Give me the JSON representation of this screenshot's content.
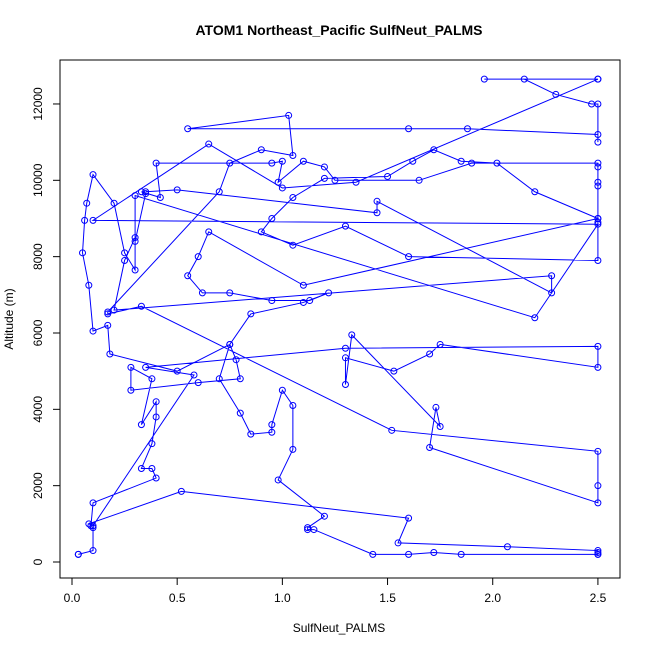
{
  "chart_data": {
    "type": "line",
    "title": "ATOM1 Northeast_Pacific SulfNeut_PALMS",
    "x_label": "SulfNeut_PALMS",
    "y_label": "Altitude (m)",
    "x": [
      0.03,
      0.03,
      0.1,
      0.1,
      0.09,
      0.1,
      0.4,
      0.38,
      0.33,
      0.38,
      0.4,
      0.4,
      0.33,
      0.38,
      0.28,
      0.28,
      0.6,
      0.8,
      0.78,
      0.75,
      0.5,
      0.18,
      0.17,
      0.1,
      0.08,
      0.05,
      0.06,
      0.07,
      0.1,
      0.2,
      0.25,
      0.3,
      0.3,
      0.35,
      0.33,
      0.42,
      0.4,
      0.95,
      1.0,
      0.98,
      1.1,
      1.2,
      1.25,
      1.65,
      1.9,
      2.5,
      2.5,
      2.5,
      2.5,
      2.5,
      2.5,
      2.5,
      1.6,
      1.3,
      1.05,
      0.9,
      0.95,
      1.05,
      1.2,
      1.5,
      1.62,
      1.72,
      1.85,
      2.02,
      2.2,
      2.5,
      1.1,
      0.65,
      0.6,
      0.55,
      0.62,
      0.75,
      0.95,
      1.13,
      1.22,
      1.1,
      0.85,
      0.75,
      0.7,
      0.8,
      0.85,
      0.95,
      0.95,
      1.0,
      1.05,
      1.05,
      0.98,
      1.2,
      1.12,
      1.12,
      1.15,
      1.43,
      1.6,
      1.72,
      1.85,
      2.5,
      2.5,
      2.5,
      2.5,
      2.07,
      1.55,
      1.6,
      0.52,
      0.08,
      0.1,
      0.58,
      0.35,
      1.3,
      2.5,
      2.5,
      1.75,
      1.7,
      1.53,
      1.3,
      1.3,
      1.33,
      1.75,
      1.73,
      1.7,
      2.5,
      2.5,
      2.5,
      1.52,
      0.33,
      0.17,
      0.17,
      0.7,
      0.75,
      0.9,
      1.05,
      1.03,
      0.55,
      1.6,
      1.88,
      2.5,
      2.5,
      2.5,
      2.47,
      2.3,
      2.15,
      1.96,
      2.5,
      2.5,
      1.35,
      1.0,
      0.65,
      0.1,
      2.5,
      2.2,
      0.3,
      0.3,
      0.25,
      0.2,
      2.28,
      2.28,
      1.45,
      1.45,
      0.5,
      0.35
    ],
    "series": [
      {
        "color": "#0000ff",
        "values": [
          200,
          200,
          300,
          900,
          950,
          1550,
          2200,
          2450,
          2450,
          3100,
          3800,
          4200,
          3600,
          4800,
          5100,
          4500,
          4700,
          4800,
          5300,
          5700,
          5000,
          5450,
          6200,
          6050,
          7250,
          8100,
          8950,
          9400,
          10150,
          9400,
          8100,
          7650,
          8400,
          9650,
          9700,
          9550,
          10450,
          10450,
          10500,
          9950,
          10500,
          10350,
          10000,
          10000,
          10450,
          10450,
          10350,
          9950,
          9850,
          9000,
          8900,
          7900,
          8000,
          8800,
          8300,
          8650,
          9000,
          9550,
          10050,
          10100,
          10500,
          10800,
          10500,
          10450,
          9700,
          9000,
          7250,
          8650,
          8000,
          7500,
          7050,
          7050,
          6850,
          6850,
          7050,
          6800,
          6500,
          5700,
          4800,
          3900,
          3350,
          3400,
          3600,
          4500,
          4100,
          2950,
          2150,
          1200,
          900,
          850,
          850,
          200,
          200,
          250,
          200,
          200,
          250,
          200,
          300,
          400,
          500,
          1150,
          1850,
          1000,
          950,
          4900,
          5100,
          5600,
          5650,
          5100,
          5700,
          5450,
          5000,
          5350,
          4650,
          5950,
          3550,
          4050,
          3000,
          1550,
          2000,
          2900,
          3450,
          6700,
          6500,
          6550,
          9700,
          10450,
          10800,
          10650,
          11700,
          11350,
          11350,
          11350,
          11200,
          11000,
          12000,
          12000,
          12250,
          12650,
          12650,
          12650,
          12650,
          9950,
          9800,
          10950,
          8950,
          8850,
          6400,
          9600,
          8500,
          7900,
          6600,
          7500,
          7050,
          9450,
          9150,
          9750,
          9700
        ]
      }
    ],
    "xlim": [
      -0.057,
      2.605
    ],
    "ylim": [
      -419,
      13152
    ],
    "xticks": [
      {
        "value": 0,
        "label": "0.0"
      },
      0.5,
      {
        "value": 1,
        "label": "1.0"
      },
      1.5,
      {
        "value": 2,
        "label": "2.0"
      },
      2.5
    ],
    "yticks": [
      0,
      2000,
      4000,
      6000,
      8000,
      10000,
      12000
    ]
  }
}
